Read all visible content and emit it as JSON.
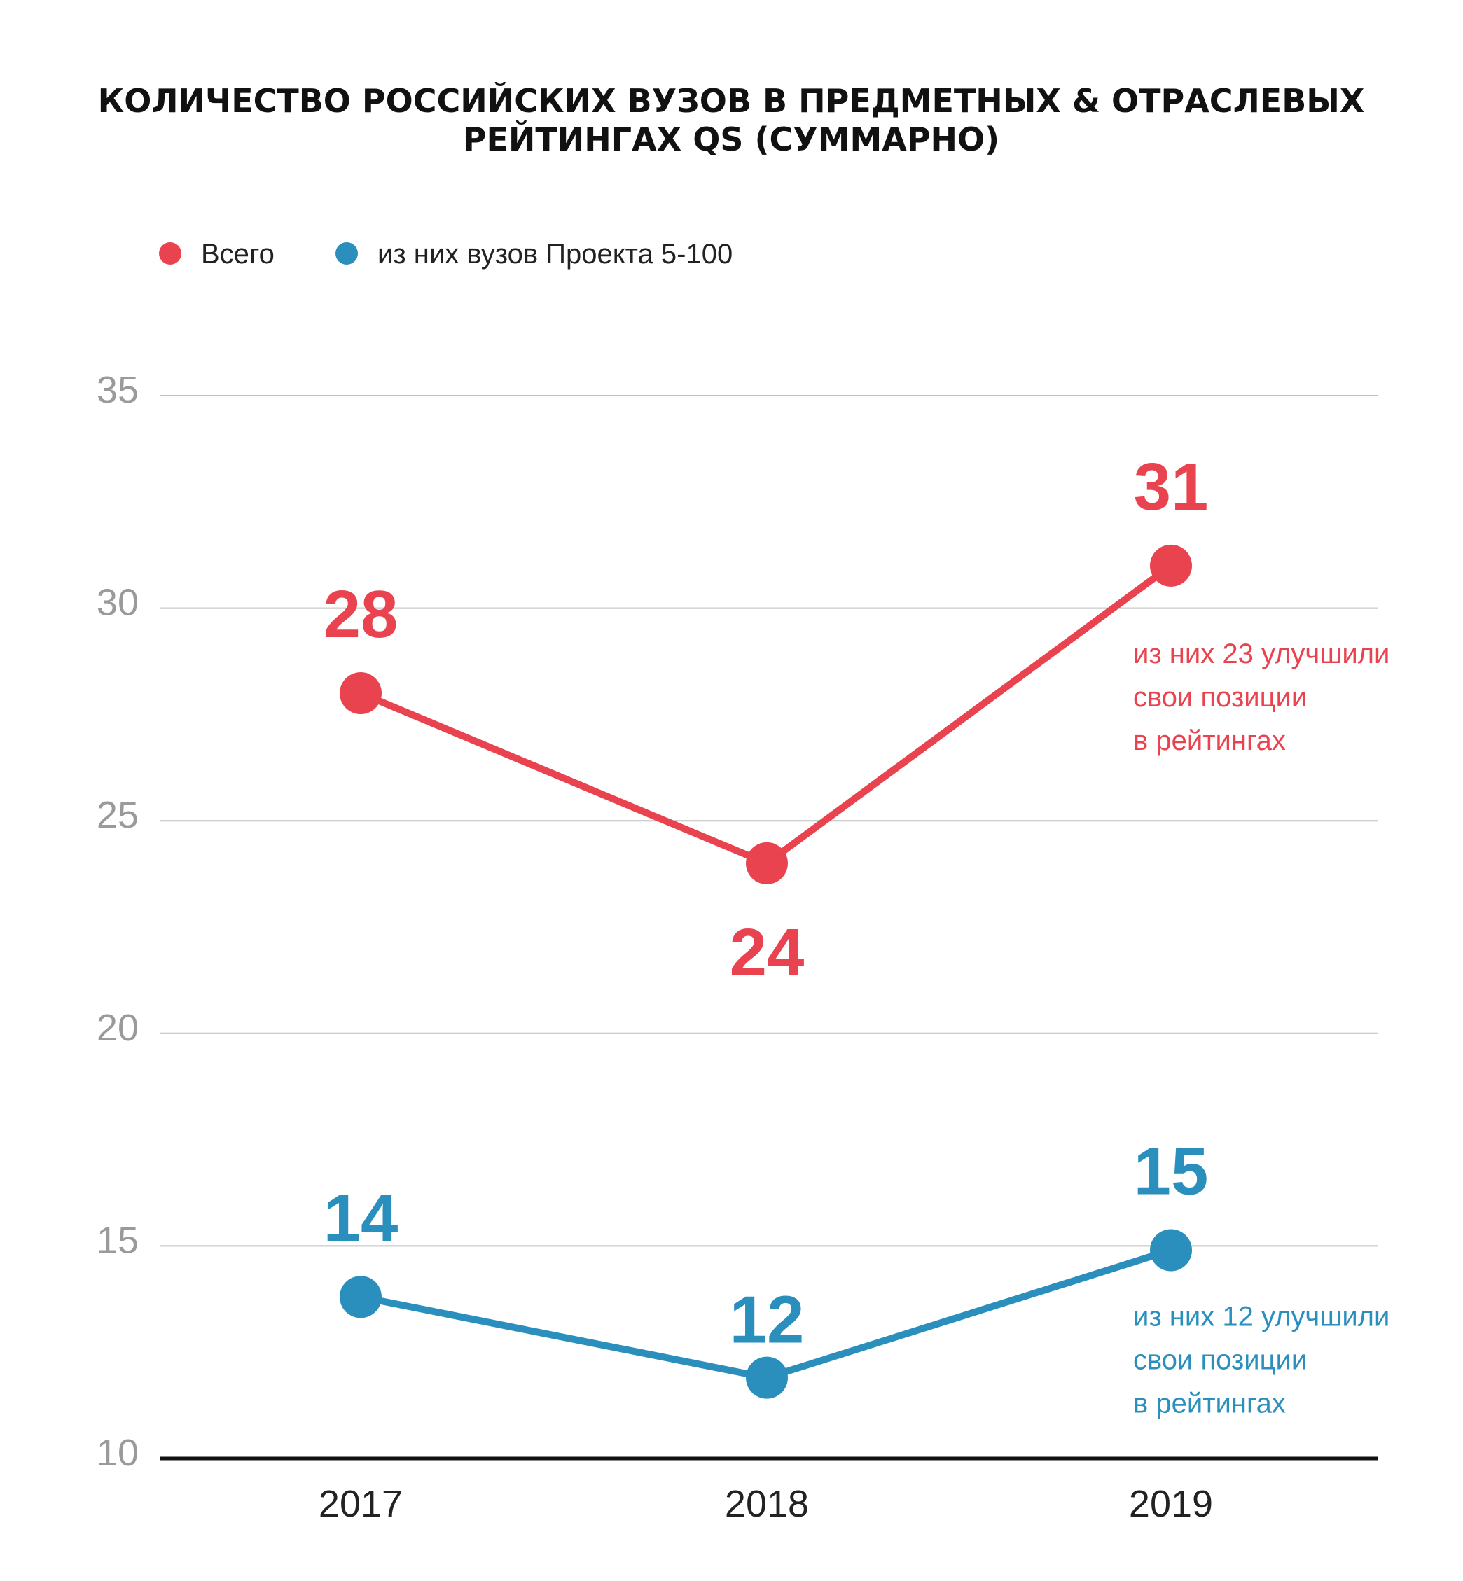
{
  "chart_data": {
    "type": "line",
    "title_lines": [
      "КОЛИЧЕСТВО РОССИЙСКИХ ВУЗОВ В ПРЕДМЕТНЫХ & ОТРАСЛЕВЫХ",
      "РЕЙТИНГАХ QS (СУММАРНО)"
    ],
    "categories": [
      "2017",
      "2018",
      "2019"
    ],
    "ylim": [
      10,
      35
    ],
    "yticks": [
      10,
      15,
      20,
      25,
      30,
      35
    ],
    "grid": true,
    "legend_position": "top-left",
    "series": [
      {
        "name": "Всего",
        "color": "#e8434f",
        "values": [
          28,
          24,
          31
        ],
        "value_labels": [
          "28",
          "24",
          "31"
        ],
        "note_lines": [
          "из них 23 улучшили",
          "свои позиции",
          "в рейтингах"
        ]
      },
      {
        "name": "из них вузов Проекта 5-100",
        "color": "#2a8fbd",
        "values": [
          13.8,
          11.9,
          14.9
        ],
        "value_labels": [
          "14",
          "12",
          "15"
        ],
        "note_lines": [
          "из них 12 улучшили",
          "свои позиции",
          "в рейтингах"
        ]
      }
    ]
  }
}
